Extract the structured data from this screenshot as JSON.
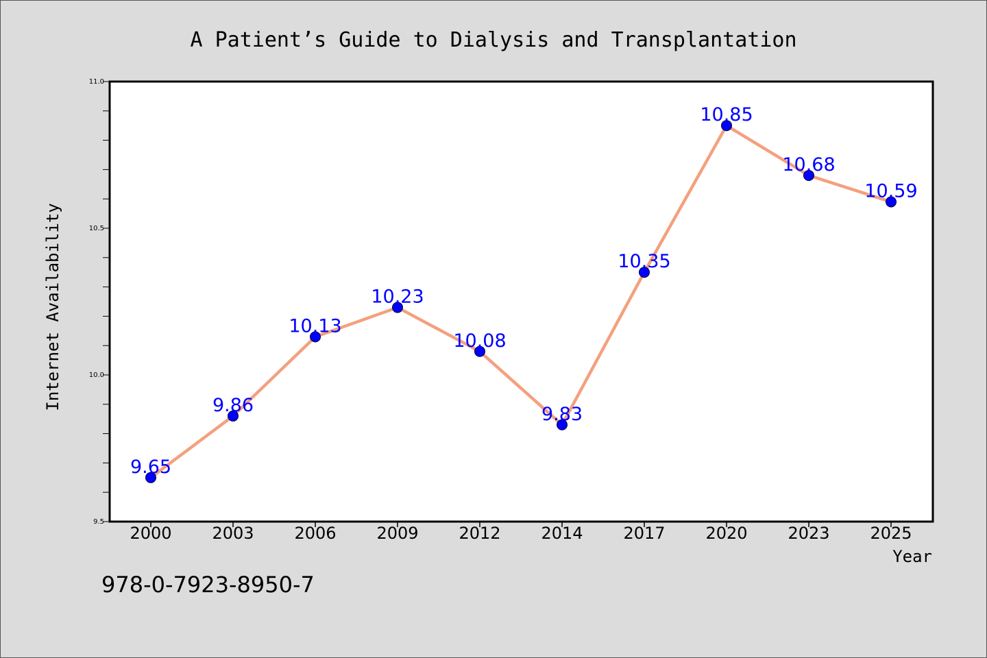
{
  "chart_data": {
    "type": "line",
    "title": "A Patient’s Guide to Dialysis and Transplantation",
    "xlabel": "Year",
    "ylabel": "Internet Availability",
    "categories": [
      "2000",
      "2003",
      "2006",
      "2009",
      "2012",
      "2014",
      "2017",
      "2020",
      "2023",
      "2025"
    ],
    "values": [
      9.65,
      9.86,
      10.13,
      10.23,
      10.08,
      9.83,
      10.35,
      10.85,
      10.68,
      10.59
    ],
    "data_labels": [
      "9.65",
      "9.86",
      "10.13",
      "10.23",
      "10.08",
      "9.83",
      "10.35",
      "10.85",
      "10.68",
      "10.59"
    ],
    "ylim": [
      9.5,
      11.0
    ],
    "yticks": [
      "9.5",
      "10.0",
      "10.5",
      "11.0"
    ],
    "grid": false,
    "legend": "none",
    "colors": {
      "line": "#f4a07f",
      "marker": "#0000ff",
      "label": "#0000ff",
      "plot_bg": "#ffffff",
      "page_bg": "#dcdcdc"
    }
  },
  "footer": {
    "isbn": "978-0-7923-8950-7"
  }
}
